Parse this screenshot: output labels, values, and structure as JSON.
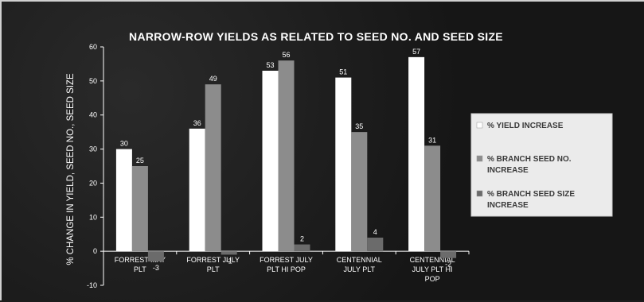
{
  "chart_data": {
    "type": "bar",
    "title": "NARROW-ROW YIELDS AS RELATED TO SEED NO. AND SEED SIZE",
    "xlabel": "",
    "ylabel": "% CHANGE IN YIELD, SEED NO., SEED SIZE",
    "ylim": [
      -10,
      60
    ],
    "yticks": [
      -10,
      0,
      10,
      20,
      30,
      40,
      50,
      60
    ],
    "grid": false,
    "legend_position": "right",
    "categories": [
      [
        "FORREST MAY",
        "PLT"
      ],
      [
        "FORREST JULY",
        "PLT"
      ],
      [
        "FORREST JULY",
        "PLT HI POP"
      ],
      [
        "CENTENNIAL",
        "JULY PLT"
      ],
      [
        "CENTENNIAL",
        "JULY PLT HI",
        "POP"
      ]
    ],
    "series": [
      {
        "name": "% YIELD INCREASE",
        "color": "#ffffff",
        "values": [
          30,
          36,
          53,
          51,
          57
        ],
        "labels": [
          "30",
          "36",
          "53",
          "51",
          "57"
        ]
      },
      {
        "name": "% BRANCH SEED NO. INCREASE",
        "color": "#8c8c8c",
        "values": [
          25,
          49,
          56,
          35,
          31
        ],
        "labels": [
          "25",
          "49",
          "56",
          "35",
          "31"
        ]
      },
      {
        "name": "% BRANCH SEED SIZE INCREASE",
        "color": "#6b6b6b",
        "values": [
          -3,
          -1,
          2,
          4,
          -2
        ],
        "labels": [
          "-3",
          "-1",
          "2",
          "4",
          "-2"
        ]
      }
    ],
    "legend_lines": [
      [
        "% YIELD INCREASE"
      ],
      [
        "% BRANCH SEED NO.",
        "INCREASE"
      ],
      [
        "% BRANCH SEED SIZE",
        "INCREASE"
      ]
    ]
  }
}
